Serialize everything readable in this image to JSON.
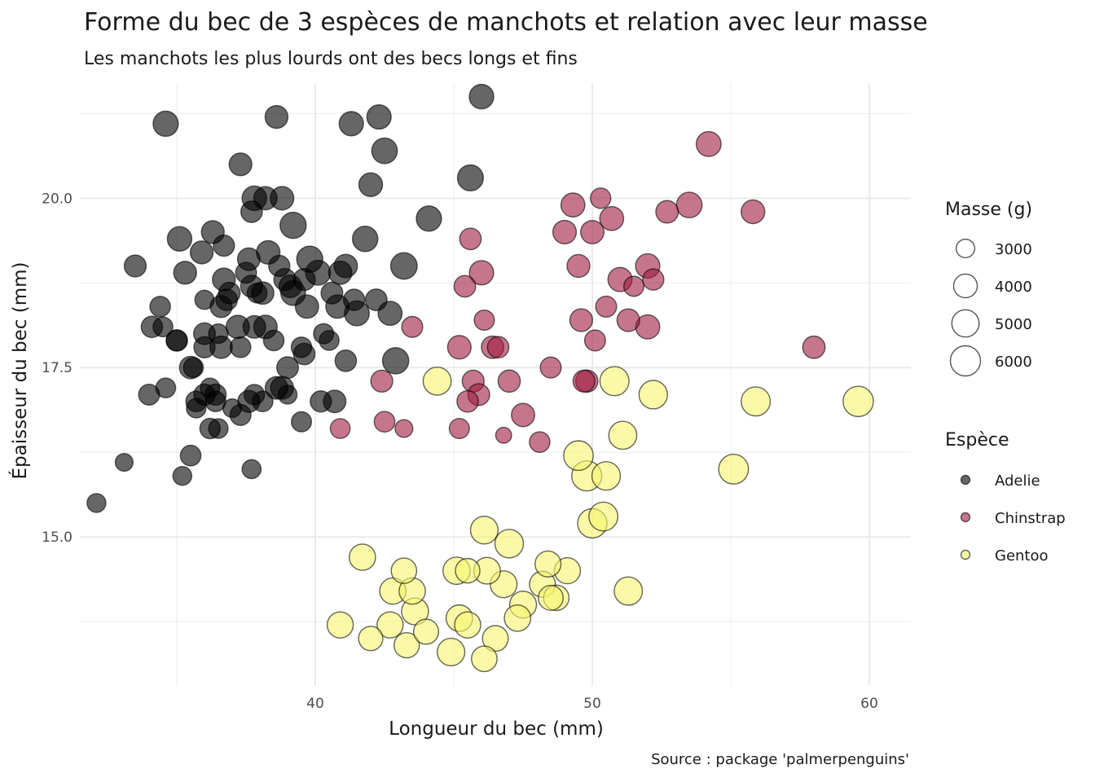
{
  "title": "Forme du bec de 3 espèces de manchots et relation avec leur masse",
  "subtitle": "Les manchots les plus lourds ont des becs longs et fins",
  "caption": "Source :  package 'palmerpenguins'",
  "colors": {
    "Adelie": "#000000",
    "Chinstrap": "#a01a40",
    "Gentoo": "#f5f56e",
    "grid": "#ebebeb",
    "stroke": "#000000"
  },
  "legend": {
    "size_title": "Masse (g)",
    "size_breaks": [
      "3000",
      "4000",
      "5000",
      "6000"
    ],
    "color_title": "Espèce",
    "species": [
      "Adelie",
      "Chinstrap",
      "Gentoo"
    ]
  },
  "chart_data": {
    "type": "scatter",
    "title": "Forme du bec de 3 espèces de manchots et relation avec leur masse",
    "subtitle": "Les manchots les plus lourds ont des becs longs et fins",
    "xlabel": "Longueur du bec (mm)",
    "ylabel": "Épaisseur du bec (mm)",
    "xlim": [
      31.5,
      61.5
    ],
    "ylim": [
      12.8,
      21.7
    ],
    "x_ticks": [
      "40",
      "50",
      "60"
    ],
    "y_ticks": [
      "15.0",
      "17.5",
      "20.0"
    ],
    "grid": true,
    "legend_position": "right",
    "series": [
      {
        "name": "Adelie",
        "points": [
          [
            32.1,
            15.5,
            3050
          ],
          [
            33.1,
            16.1,
            2900
          ],
          [
            33.5,
            19.0,
            3600
          ],
          [
            34.0,
            17.1,
            3400
          ],
          [
            34.1,
            18.1,
            3475
          ],
          [
            34.4,
            18.4,
            3325
          ],
          [
            34.5,
            18.1,
            3200
          ],
          [
            34.6,
            21.1,
            4400
          ],
          [
            34.6,
            17.2,
            3200
          ],
          [
            35.0,
            17.9,
            3450
          ],
          [
            35.0,
            17.9,
            3450
          ],
          [
            35.1,
            19.4,
            4200
          ],
          [
            35.2,
            15.9,
            3050
          ],
          [
            35.3,
            18.9,
            3800
          ],
          [
            35.5,
            17.5,
            3700
          ],
          [
            35.5,
            16.2,
            3350
          ],
          [
            35.6,
            17.5,
            3200
          ],
          [
            35.7,
            16.9,
            3150
          ],
          [
            35.7,
            17.0,
            3350
          ],
          [
            35.9,
            19.2,
            3800
          ],
          [
            36.0,
            18.5,
            3100
          ],
          [
            36.0,
            17.1,
            3450
          ],
          [
            36.0,
            17.8,
            3450
          ],
          [
            36.0,
            18.0,
            3550
          ],
          [
            36.2,
            16.6,
            3300
          ],
          [
            36.2,
            17.2,
            3150
          ],
          [
            36.3,
            19.5,
            3800
          ],
          [
            36.4,
            17.0,
            3300
          ],
          [
            36.4,
            17.1,
            3450
          ],
          [
            36.5,
            16.6,
            3150
          ],
          [
            36.5,
            18.0,
            3150
          ],
          [
            36.6,
            17.8,
            3700
          ],
          [
            36.6,
            18.4,
            3600
          ],
          [
            36.7,
            18.8,
            3800
          ],
          [
            36.7,
            19.3,
            3450
          ],
          [
            36.8,
            18.5,
            3500
          ],
          [
            36.9,
            18.6,
            3500
          ],
          [
            37.0,
            16.9,
            3000
          ],
          [
            37.2,
            18.1,
            3900
          ],
          [
            37.3,
            16.8,
            3400
          ],
          [
            37.3,
            17.8,
            3350
          ],
          [
            37.3,
            20.5,
            3775
          ],
          [
            37.5,
            18.9,
            3400
          ],
          [
            37.6,
            17.0,
            3600
          ],
          [
            37.6,
            19.1,
            3750
          ],
          [
            37.7,
            16.0,
            3075
          ],
          [
            37.7,
            18.7,
            3600
          ],
          [
            37.7,
            19.8,
            3500
          ],
          [
            37.8,
            17.1,
            3300
          ],
          [
            37.8,
            18.1,
            3750
          ],
          [
            37.8,
            20.0,
            4200
          ],
          [
            37.9,
            18.6,
            3200
          ],
          [
            38.1,
            17.0,
            3325
          ],
          [
            38.1,
            18.6,
            3700
          ],
          [
            38.2,
            20.0,
            3900
          ],
          [
            38.2,
            18.1,
            3950
          ],
          [
            38.3,
            19.2,
            3950
          ],
          [
            38.5,
            17.9,
            3325
          ],
          [
            38.6,
            17.2,
            3750
          ],
          [
            38.6,
            21.2,
            3800
          ],
          [
            38.7,
            19.0,
            3450
          ],
          [
            38.8,
            17.2,
            3800
          ],
          [
            38.8,
            20.0,
            3950
          ],
          [
            38.9,
            18.8,
            3600
          ],
          [
            39.0,
            17.1,
            3050
          ],
          [
            39.0,
            17.5,
            3550
          ],
          [
            39.1,
            18.7,
            3750
          ],
          [
            39.2,
            19.6,
            4675
          ],
          [
            39.2,
            18.6,
            4250
          ],
          [
            39.5,
            16.7,
            3250
          ],
          [
            39.5,
            17.8,
            3300
          ],
          [
            39.6,
            17.7,
            3500
          ],
          [
            39.6,
            18.8,
            3600
          ],
          [
            39.7,
            18.4,
            3900
          ],
          [
            39.8,
            19.1,
            4650
          ],
          [
            40.1,
            18.9,
            4300
          ],
          [
            40.2,
            17.0,
            3450
          ],
          [
            40.3,
            18.0,
            3250
          ],
          [
            40.5,
            17.9,
            3200
          ],
          [
            40.6,
            18.6,
            3550
          ],
          [
            40.7,
            17.0,
            3725
          ],
          [
            40.8,
            18.4,
            3900
          ],
          [
            40.9,
            18.9,
            3900
          ],
          [
            41.1,
            17.6,
            3500
          ],
          [
            41.1,
            19.0,
            3900
          ],
          [
            41.3,
            21.1,
            4150
          ],
          [
            41.4,
            18.5,
            3475
          ],
          [
            41.5,
            18.3,
            4300
          ],
          [
            41.8,
            19.4,
            4450
          ],
          [
            42.0,
            20.2,
            4000
          ],
          [
            42.2,
            18.5,
            3550
          ],
          [
            42.3,
            21.2,
            4150
          ],
          [
            42.5,
            20.7,
            4500
          ],
          [
            42.7,
            18.3,
            4075
          ],
          [
            42.9,
            17.6,
            4700
          ],
          [
            43.2,
            19.0,
            4775
          ],
          [
            44.1,
            19.7,
            4400
          ],
          [
            45.6,
            20.3,
            4600
          ],
          [
            46.0,
            21.5,
            4200
          ]
        ]
      },
      {
        "name": "Chinstrap",
        "points": [
          [
            40.9,
            16.6,
            3200
          ],
          [
            42.4,
            17.3,
            3600
          ],
          [
            42.5,
            16.7,
            3350
          ],
          [
            43.2,
            16.6,
            2900
          ],
          [
            43.5,
            18.1,
            3400
          ],
          [
            45.2,
            16.6,
            3250
          ],
          [
            45.2,
            17.8,
            3950
          ],
          [
            45.4,
            18.7,
            3525
          ],
          [
            45.5,
            17.0,
            3500
          ],
          [
            45.6,
            19.4,
            3525
          ],
          [
            45.7,
            17.3,
            3600
          ],
          [
            45.9,
            17.1,
            3575
          ],
          [
            46.0,
            18.9,
            4150
          ],
          [
            46.1,
            18.2,
            3250
          ],
          [
            46.4,
            17.8,
            3700
          ],
          [
            46.6,
            17.8,
            3500
          ],
          [
            46.8,
            16.5,
            2700
          ],
          [
            47.0,
            17.3,
            3650
          ],
          [
            47.5,
            16.8,
            3900
          ],
          [
            48.1,
            16.4,
            3325
          ],
          [
            48.5,
            17.5,
            3400
          ],
          [
            49.0,
            19.5,
            3950
          ],
          [
            49.3,
            19.9,
            4050
          ],
          [
            49.5,
            19.0,
            3800
          ],
          [
            49.6,
            18.2,
            3775
          ],
          [
            49.7,
            17.3,
            3600
          ],
          [
            49.8,
            17.3,
            3675
          ],
          [
            50.0,
            19.5,
            3900
          ],
          [
            50.1,
            17.9,
            3400
          ],
          [
            50.3,
            20.0,
            3300
          ],
          [
            50.5,
            18.4,
            3400
          ],
          [
            50.7,
            19.7,
            4050
          ],
          [
            51.0,
            18.8,
            4100
          ],
          [
            51.3,
            18.2,
            3750
          ],
          [
            51.5,
            18.7,
            3250
          ],
          [
            52.0,
            18.1,
            4100
          ],
          [
            52.0,
            19.0,
            4150
          ],
          [
            52.2,
            18.8,
            3450
          ],
          [
            52.7,
            19.8,
            3725
          ],
          [
            53.5,
            19.9,
            4500
          ],
          [
            54.2,
            20.8,
            4300
          ],
          [
            55.8,
            19.8,
            4000
          ],
          [
            58.0,
            17.8,
            3700
          ]
        ]
      },
      {
        "name": "Gentoo",
        "points": [
          [
            40.9,
            13.7,
            4650
          ],
          [
            41.7,
            14.7,
            4700
          ],
          [
            42.0,
            13.5,
            4150
          ],
          [
            42.7,
            13.7,
            4650
          ],
          [
            42.8,
            14.2,
            4700
          ],
          [
            43.2,
            14.5,
            4450
          ],
          [
            43.3,
            13.4,
            4400
          ],
          [
            43.5,
            14.2,
            4700
          ],
          [
            43.6,
            13.9,
            4900
          ],
          [
            44.0,
            13.6,
            4350
          ],
          [
            44.4,
            17.3,
            5250
          ],
          [
            44.9,
            13.3,
            5100
          ],
          [
            45.1,
            14.5,
            5000
          ],
          [
            45.2,
            13.8,
            4750
          ],
          [
            45.5,
            13.7,
            4650
          ],
          [
            45.5,
            14.5,
            4200
          ],
          [
            46.1,
            13.2,
            4500
          ],
          [
            46.1,
            15.1,
            5100
          ],
          [
            46.2,
            14.5,
            4800
          ],
          [
            46.5,
            13.5,
            4550
          ],
          [
            46.8,
            14.3,
            4850
          ],
          [
            47.0,
            14.9,
            5400
          ],
          [
            47.3,
            13.8,
            4725
          ],
          [
            47.5,
            14.0,
            4875
          ],
          [
            48.2,
            14.3,
            4600
          ],
          [
            48.4,
            14.6,
            4600
          ],
          [
            48.5,
            14.1,
            4300
          ],
          [
            48.7,
            14.1,
            4450
          ],
          [
            49.1,
            14.5,
            4625
          ],
          [
            49.5,
            16.2,
            5800
          ],
          [
            49.8,
            15.9,
            5950
          ],
          [
            50.0,
            15.2,
            5700
          ],
          [
            50.4,
            15.3,
            5550
          ],
          [
            50.5,
            15.9,
            5400
          ],
          [
            50.8,
            17.3,
            5600
          ],
          [
            51.1,
            16.5,
            5250
          ],
          [
            51.3,
            14.2,
            5300
          ],
          [
            52.2,
            17.1,
            5400
          ],
          [
            55.1,
            16.0,
            5850
          ],
          [
            55.9,
            17.0,
            5600
          ],
          [
            59.6,
            17.0,
            6050
          ]
        ]
      }
    ]
  }
}
